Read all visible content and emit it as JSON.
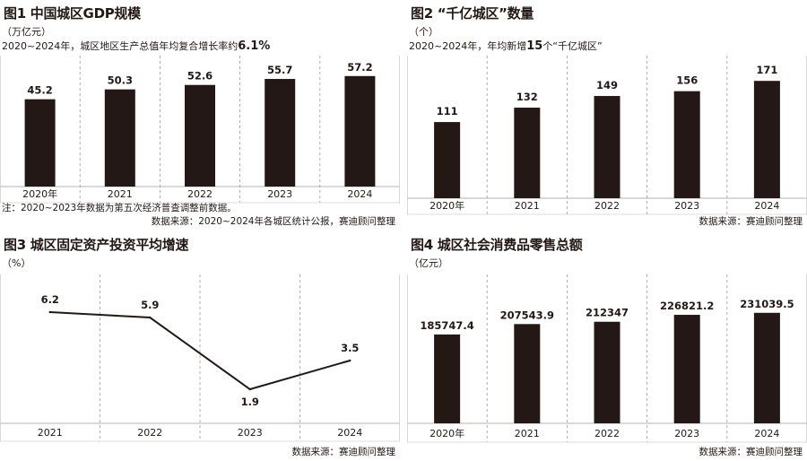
{
  "colors": {
    "bar": "#231815",
    "grid": "#9a9a9a",
    "line": "#231815",
    "text": "#231815"
  },
  "chart_data": [
    {
      "type": "bar",
      "title": "图1 中国城区GDP规模",
      "unit": "（万亿元）",
      "subtitle_prefix": "2020~2024年，城区地区生产总值年均复合增长率约",
      "subtitle_highlight": "6.1%",
      "categories": [
        "2020年",
        "2021",
        "2022",
        "2023",
        "2024"
      ],
      "values": [
        45.2,
        50.3,
        52.6,
        55.7,
        57.2
      ],
      "labels": [
        "45.2",
        "50.3",
        "52.6",
        "55.7",
        "57.2"
      ],
      "ylim": [
        0,
        65
      ],
      "grid": "vertical-dashed",
      "note": "注：2020~2023年数据为第五次经济普查调整前数据。",
      "source": "数据来源：2020~2024年各城区统计公报，赛迪顾问整理"
    },
    {
      "type": "bar",
      "title": "图2 “千亿城区”数量",
      "unit": "（个）",
      "subtitle_prefix": "2020~2024年，年均新增",
      "subtitle_highlight": "15",
      "subtitle_suffix": "个“千亿城区”",
      "categories": [
        "2020年",
        "2021",
        "2022",
        "2023",
        "2024"
      ],
      "values": [
        111,
        132,
        149,
        156,
        171
      ],
      "labels": [
        "111",
        "132",
        "149",
        "156",
        "171"
      ],
      "ylim": [
        0,
        200
      ],
      "grid": "vertical-dashed",
      "source": "数据来源：赛迪顾问整理"
    },
    {
      "type": "line",
      "title": "图3 城区固定资产投资平均增速",
      "unit": "（%）",
      "categories": [
        "2021",
        "2022",
        "2023",
        "2024"
      ],
      "values": [
        6.2,
        5.9,
        1.9,
        3.5
      ],
      "labels": [
        "6.2",
        "5.9",
        "1.9",
        "3.5"
      ],
      "ylim": [
        0,
        8
      ],
      "grid": "vertical-dashed",
      "source": "数据来源：赛迪顾问整理"
    },
    {
      "type": "bar",
      "title": "图4 城区社会消费品零售总额",
      "unit": "（亿元）",
      "categories": [
        "2020年",
        "2021",
        "2022",
        "2023",
        "2024"
      ],
      "values": [
        185747.4,
        207543.9,
        212347,
        226821.2,
        231039.5
      ],
      "labels": [
        "185747.4",
        "207543.9",
        "212347",
        "226821.2",
        "231039.5"
      ],
      "ylim": [
        0,
        300000
      ],
      "grid": "vertical-dashed",
      "source": "数据来源：赛迪顾问整理"
    }
  ]
}
